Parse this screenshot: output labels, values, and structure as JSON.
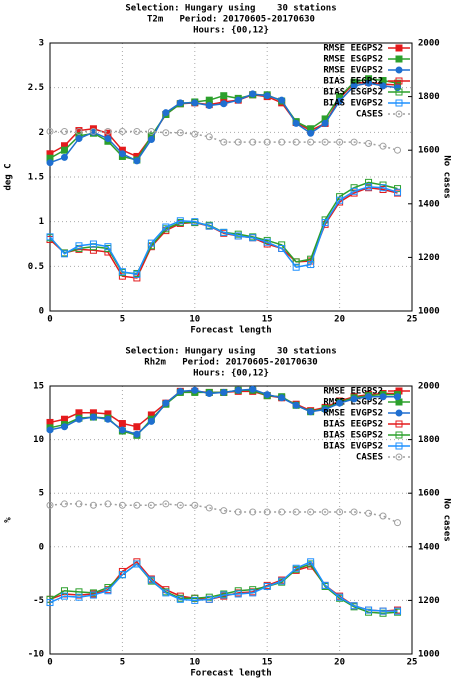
{
  "chart_data": [
    {
      "type": "line",
      "title": [
        "Selection: Hungary using    30 stations",
        "T2m   Period: 20170605-20170630",
        "Hours: {00,12}"
      ],
      "xlabel": "Forecast length",
      "ylabel": "deg C",
      "y2label": "No cases",
      "x": [
        0,
        1,
        2,
        3,
        4,
        5,
        6,
        7,
        8,
        9,
        10,
        11,
        12,
        13,
        14,
        15,
        16,
        17,
        18,
        19,
        20,
        21,
        22,
        23,
        24
      ],
      "xlim": [
        0,
        25
      ],
      "xticks": [
        0,
        5,
        10,
        15,
        20,
        25
      ],
      "ylim": [
        0,
        3
      ],
      "yticks": [
        0,
        0.5,
        1,
        1.5,
        2,
        2.5,
        3
      ],
      "y2lim": [
        1000,
        2000
      ],
      "y2ticks": [
        1000,
        1200,
        1400,
        1600,
        1800,
        2000
      ],
      "grid": true,
      "legend": "upper right",
      "series": [
        {
          "name": "RMSE EEGPS2",
          "color": "#e41a1c",
          "marker": "square",
          "values": [
            1.76,
            1.85,
            2.02,
            2.04,
            1.99,
            1.8,
            1.73,
            1.95,
            2.2,
            2.32,
            2.33,
            2.31,
            2.34,
            2.36,
            2.42,
            2.4,
            2.33,
            2.11,
            2.02,
            2.1,
            2.38,
            2.55,
            2.56,
            2.54,
            2.53
          ]
        },
        {
          "name": "RMSE ESGPS2",
          "color": "#2ca02c",
          "marker": "square",
          "values": [
            1.71,
            1.8,
            1.96,
            1.99,
            1.9,
            1.73,
            1.69,
            1.96,
            2.2,
            2.32,
            2.34,
            2.36,
            2.41,
            2.38,
            2.42,
            2.42,
            2.35,
            2.12,
            2.04,
            2.15,
            2.4,
            2.56,
            2.6,
            2.58,
            2.55
          ]
        },
        {
          "name": "RMSE EVGPS2",
          "color": "#1f6fd0",
          "marker": "circle",
          "values": [
            1.66,
            1.72,
            1.93,
            2.0,
            1.93,
            1.76,
            1.68,
            1.92,
            2.22,
            2.33,
            2.33,
            2.3,
            2.32,
            2.36,
            2.43,
            2.41,
            2.36,
            2.1,
            1.99,
            2.1,
            2.35,
            2.52,
            2.55,
            2.52,
            2.5
          ]
        },
        {
          "name": "BIAS EEGPS2",
          "color": "#e41a1c",
          "marker": "open-square",
          "values": [
            0.8,
            0.65,
            0.69,
            0.68,
            0.66,
            0.39,
            0.37,
            0.72,
            0.9,
            0.98,
            0.99,
            0.95,
            0.87,
            0.84,
            0.82,
            0.75,
            0.7,
            0.55,
            0.56,
            0.97,
            1.22,
            1.32,
            1.38,
            1.36,
            1.32
          ]
        },
        {
          "name": "BIAS ESGPS2",
          "color": "#2ca02c",
          "marker": "open-square",
          "values": [
            0.82,
            0.65,
            0.7,
            0.72,
            0.7,
            0.43,
            0.42,
            0.73,
            0.92,
            0.99,
            0.99,
            0.96,
            0.88,
            0.86,
            0.83,
            0.79,
            0.74,
            0.55,
            0.58,
            1.02,
            1.28,
            1.38,
            1.44,
            1.41,
            1.37
          ]
        },
        {
          "name": "BIAS EVGPS2",
          "color": "#1e90ff",
          "marker": "open-square",
          "values": [
            0.83,
            0.64,
            0.73,
            0.75,
            0.72,
            0.44,
            0.41,
            0.76,
            0.94,
            1.01,
            1.0,
            0.95,
            0.88,
            0.84,
            0.82,
            0.77,
            0.7,
            0.49,
            0.52,
            0.99,
            1.24,
            1.34,
            1.39,
            1.38,
            1.33
          ]
        },
        {
          "name": "CASES",
          "color": "#a0a0a0",
          "marker": "open-circle",
          "dashed": true,
          "axis": "y2",
          "values": [
            1670,
            1670,
            1670,
            1670,
            1670,
            1670,
            1670,
            1670,
            1665,
            1665,
            1660,
            1650,
            1630,
            1630,
            1630,
            1630,
            1630,
            1630,
            1630,
            1630,
            1630,
            1630,
            1625,
            1615,
            1600
          ]
        }
      ]
    },
    {
      "type": "line",
      "title": [
        "Selection: Hungary using    30 stations",
        "Rh2m   Period: 20170605-20170630",
        "Hours: {00,12}"
      ],
      "xlabel": "Forecast length",
      "ylabel": "%",
      "y2label": "No cases",
      "x": [
        0,
        1,
        2,
        3,
        4,
        5,
        6,
        7,
        8,
        9,
        10,
        11,
        12,
        13,
        14,
        15,
        16,
        17,
        18,
        19,
        20,
        21,
        22,
        23,
        24
      ],
      "xlim": [
        0,
        25
      ],
      "xticks": [
        0,
        5,
        10,
        15,
        20,
        25
      ],
      "ylim": [
        -10,
        15
      ],
      "yticks": [
        -10,
        -5,
        0,
        5,
        10,
        15
      ],
      "y2lim": [
        1000,
        2000
      ],
      "y2ticks": [
        1000,
        1200,
        1400,
        1600,
        1800,
        2000
      ],
      "grid": true,
      "legend": "upper right",
      "series": [
        {
          "name": "RMSE EEGPS2",
          "color": "#e41a1c",
          "marker": "square",
          "values": [
            11.6,
            11.9,
            12.5,
            12.5,
            12.4,
            11.5,
            11.2,
            12.3,
            13.4,
            14.5,
            14.5,
            14.4,
            14.4,
            14.5,
            14.5,
            14.1,
            13.9,
            13.3,
            12.7,
            13.0,
            13.6,
            14.0,
            14.2,
            14.3,
            14.3
          ]
        },
        {
          "name": "RMSE ESGPS2",
          "color": "#2ca02c",
          "marker": "square",
          "values": [
            11.1,
            11.4,
            12.0,
            12.1,
            12.0,
            10.8,
            10.4,
            11.9,
            13.3,
            14.4,
            14.4,
            14.4,
            14.4,
            14.6,
            14.6,
            14.1,
            14.0,
            13.2,
            12.6,
            12.9,
            13.5,
            13.9,
            14.1,
            14.2,
            14.2
          ]
        },
        {
          "name": "RMSE EVGPS2",
          "color": "#1f6fd0",
          "marker": "circle",
          "values": [
            10.9,
            11.2,
            11.9,
            12.1,
            11.9,
            10.9,
            10.5,
            11.7,
            13.4,
            14.5,
            14.6,
            14.3,
            14.4,
            14.6,
            14.7,
            14.2,
            13.9,
            13.2,
            12.6,
            12.8,
            13.4,
            13.8,
            14.0,
            14.0,
            14.0
          ]
        },
        {
          "name": "BIAS EEGPS2",
          "color": "#e41a1c",
          "marker": "open-square",
          "values": [
            -4.9,
            -4.4,
            -4.5,
            -4.4,
            -4.0,
            -2.3,
            -1.4,
            -3.0,
            -4.0,
            -4.6,
            -4.8,
            -4.9,
            -4.6,
            -4.3,
            -4.2,
            -3.6,
            -3.1,
            -2.2,
            -1.8,
            -3.6,
            -4.6,
            -5.5,
            -5.9,
            -6.0,
            -5.9
          ]
        },
        {
          "name": "BIAS ESGPS2",
          "color": "#2ca02c",
          "marker": "open-square",
          "values": [
            -4.9,
            -4.1,
            -4.2,
            -4.3,
            -3.8,
            -2.6,
            -1.6,
            -3.2,
            -4.2,
            -4.8,
            -4.8,
            -4.7,
            -4.4,
            -4.1,
            -4.0,
            -3.7,
            -3.3,
            -2.1,
            -1.6,
            -3.7,
            -4.8,
            -5.6,
            -6.1,
            -6.2,
            -6.1
          ]
        },
        {
          "name": "BIAS EVGPS2",
          "color": "#1e90ff",
          "marker": "open-square",
          "values": [
            -5.2,
            -4.6,
            -4.7,
            -4.5,
            -4.1,
            -2.6,
            -1.6,
            -3.1,
            -4.3,
            -4.9,
            -5.0,
            -4.9,
            -4.5,
            -4.4,
            -4.3,
            -3.7,
            -3.2,
            -2.0,
            -1.4,
            -3.6,
            -4.7,
            -5.5,
            -5.9,
            -6.0,
            -6.0
          ]
        },
        {
          "name": "CASES",
          "color": "#a0a0a0",
          "marker": "open-circle",
          "dashed": true,
          "axis": "y2",
          "values": [
            1555,
            1560,
            1560,
            1555,
            1560,
            1555,
            1555,
            1555,
            1560,
            1555,
            1555,
            1545,
            1535,
            1530,
            1530,
            1530,
            1530,
            1530,
            1530,
            1530,
            1530,
            1530,
            1525,
            1515,
            1490
          ]
        }
      ]
    }
  ]
}
